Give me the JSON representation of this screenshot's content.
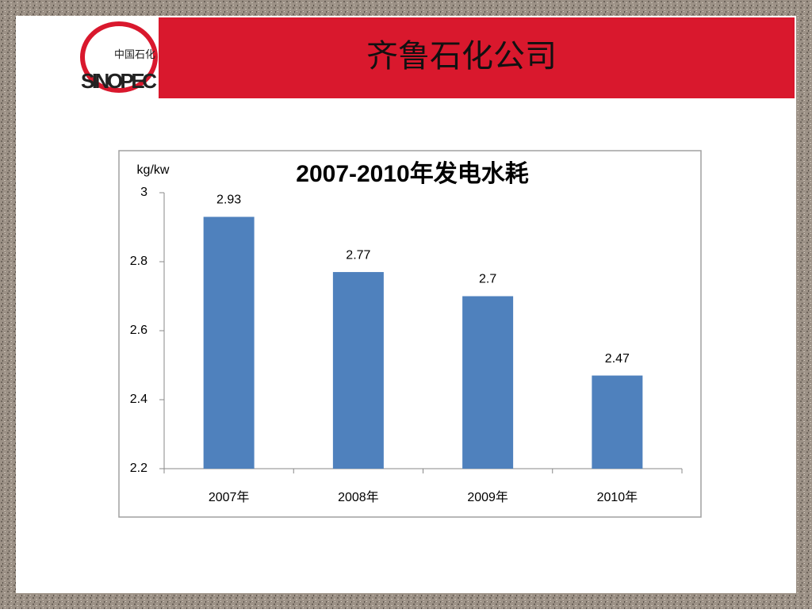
{
  "header": {
    "title": "齐鲁石化公司",
    "logo_cn": "中国石化",
    "logo_en": "SINOPEC"
  },
  "chart_data": {
    "type": "bar",
    "title": "2007-2010年发电水耗",
    "y_label": "kg/kw",
    "categories": [
      "2007年",
      "2008年",
      "2009年",
      "2010年"
    ],
    "values": [
      2.93,
      2.77,
      2.7,
      2.47
    ],
    "color": "#4f81bd",
    "ylim": [
      2.2,
      3
    ],
    "yticks": [
      2.2,
      2.4,
      2.6,
      2.8,
      3
    ],
    "grid": false
  }
}
